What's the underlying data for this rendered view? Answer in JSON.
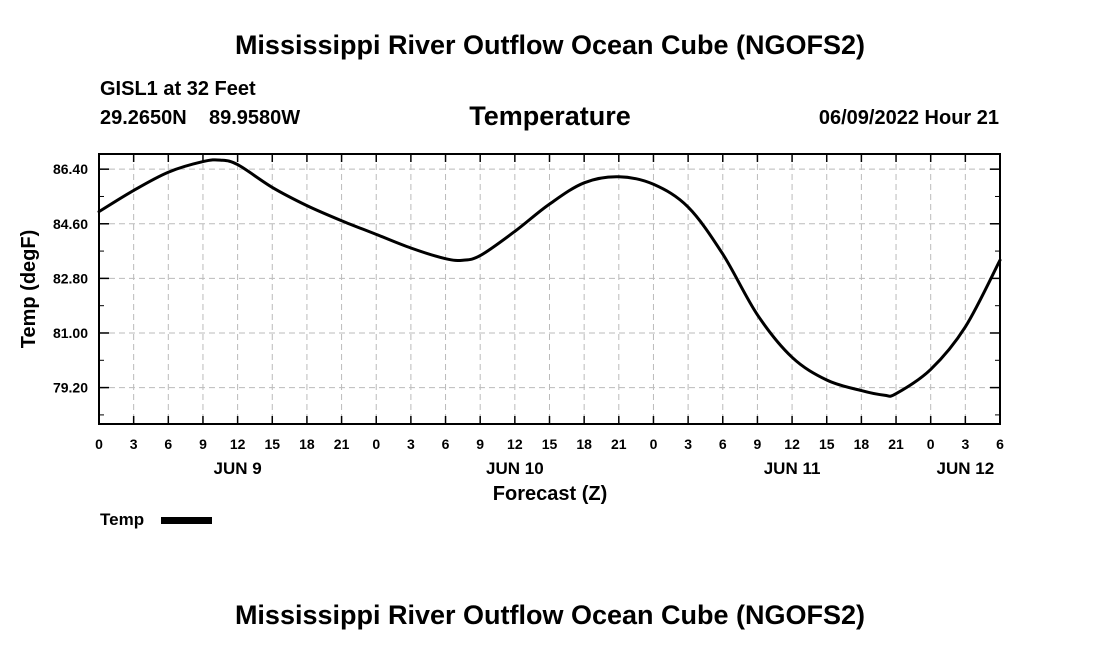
{
  "title": "Mississippi River Outflow Ocean Cube (NGOFS2)",
  "footer_title": "Mississippi River Outflow Ocean Cube (NGOFS2)",
  "station": "GISL1 at 32 Feet",
  "latitude": "29.2650N",
  "longitude": "89.9580W",
  "timestamp": "06/09/2022 Hour 21",
  "chart_data": {
    "type": "line",
    "title": "Temperature",
    "xlabel": "Forecast (Z)",
    "ylabel": "Temp (degF)",
    "x_unit": "hours since 06/09/2022 00Z",
    "xlim": [
      0,
      78
    ],
    "ylim": [
      78.0,
      86.9
    ],
    "yticks": [
      {
        "value": 79.2,
        "label": "79.20"
      },
      {
        "value": 81.0,
        "label": "81.00"
      },
      {
        "value": 82.8,
        "label": "82.80"
      },
      {
        "value": 84.6,
        "label": "84.60"
      },
      {
        "value": 86.4,
        "label": "86.40"
      }
    ],
    "xticks": [
      {
        "value": 0,
        "label": "0"
      },
      {
        "value": 3,
        "label": "3"
      },
      {
        "value": 6,
        "label": "6"
      },
      {
        "value": 9,
        "label": "9"
      },
      {
        "value": 12,
        "label": "12"
      },
      {
        "value": 15,
        "label": "15"
      },
      {
        "value": 18,
        "label": "18"
      },
      {
        "value": 21,
        "label": "21"
      },
      {
        "value": 24,
        "label": "0"
      },
      {
        "value": 27,
        "label": "3"
      },
      {
        "value": 30,
        "label": "6"
      },
      {
        "value": 33,
        "label": "9"
      },
      {
        "value": 36,
        "label": "12"
      },
      {
        "value": 39,
        "label": "15"
      },
      {
        "value": 42,
        "label": "18"
      },
      {
        "value": 45,
        "label": "21"
      },
      {
        "value": 48,
        "label": "0"
      },
      {
        "value": 51,
        "label": "3"
      },
      {
        "value": 54,
        "label": "6"
      },
      {
        "value": 57,
        "label": "9"
      },
      {
        "value": 60,
        "label": "12"
      },
      {
        "value": 63,
        "label": "15"
      },
      {
        "value": 66,
        "label": "18"
      },
      {
        "value": 69,
        "label": "21"
      },
      {
        "value": 72,
        "label": "0"
      },
      {
        "value": 75,
        "label": "3"
      },
      {
        "value": 78,
        "label": "6"
      }
    ],
    "date_labels": [
      {
        "value": 12,
        "label": "JUN 9"
      },
      {
        "value": 36,
        "label": "JUN 10"
      },
      {
        "value": 60,
        "label": "JUN 11"
      },
      {
        "value": 75,
        "label": "JUN 12"
      }
    ],
    "grid": true,
    "legend_position": "bottom-left",
    "series": [
      {
        "name": "Temp",
        "color": "#000000",
        "x": [
          0,
          3,
          6,
          9,
          10.5,
          12,
          15,
          18,
          21,
          24,
          27,
          30,
          31.5,
          33,
          36,
          39,
          42,
          45,
          48,
          51,
          54,
          57,
          60,
          63,
          66,
          68,
          69,
          72,
          75,
          78
        ],
        "y": [
          85.0,
          85.7,
          86.3,
          86.65,
          86.7,
          86.55,
          85.8,
          85.2,
          84.7,
          84.25,
          83.8,
          83.45,
          83.4,
          83.55,
          84.35,
          85.25,
          85.95,
          86.15,
          85.9,
          85.15,
          83.6,
          81.6,
          80.2,
          79.45,
          79.1,
          78.95,
          79.0,
          79.8,
          81.2,
          83.4
        ]
      }
    ]
  }
}
